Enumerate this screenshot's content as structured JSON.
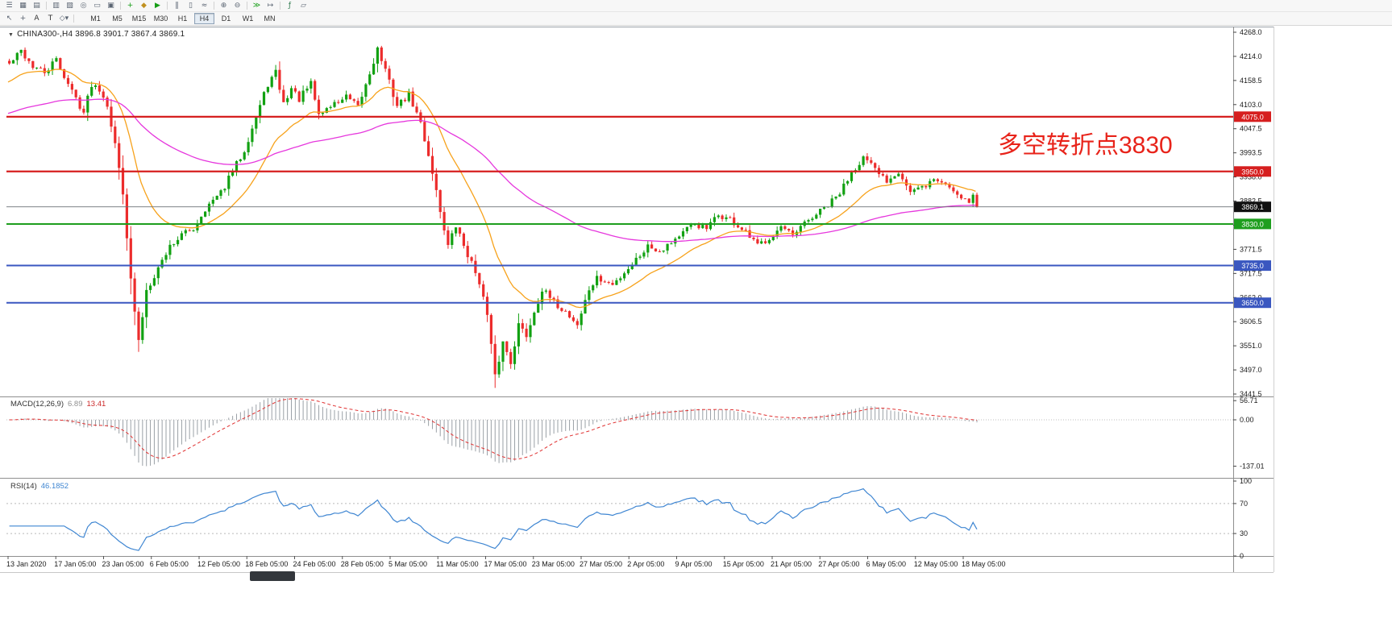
{
  "app": {
    "name": "MetaTrader chart window"
  },
  "toolbar": {
    "row1_icons": [
      {
        "name": "toolbars-menu",
        "glyph": "☰",
        "color": "#5a6472"
      },
      {
        "name": "chart-windows",
        "glyph": "▦",
        "color": "#5a6472"
      },
      {
        "name": "profiles",
        "glyph": "▤",
        "color": "#5a6472"
      },
      {
        "sep": true
      },
      {
        "name": "market-watch",
        "glyph": "▥",
        "color": "#5a6472"
      },
      {
        "name": "data-window",
        "glyph": "▧",
        "color": "#5a6472"
      },
      {
        "name": "navigator",
        "glyph": "◎",
        "color": "#5a6472"
      },
      {
        "name": "terminal",
        "glyph": "▭",
        "color": "#5a6472"
      },
      {
        "name": "strategy-tester",
        "glyph": "▣",
        "color": "#5a6472"
      },
      {
        "sep": true
      },
      {
        "name": "new-order",
        "glyph": "+",
        "color": "#159d15"
      },
      {
        "name": "metaeditor",
        "glyph": "◆",
        "color": "#c09020"
      },
      {
        "name": "autotrading",
        "glyph": "▶",
        "color": "#159d15"
      },
      {
        "sep": true
      },
      {
        "name": "bars-mode",
        "glyph": "‖",
        "color": "#5a6472"
      },
      {
        "name": "candles-mode",
        "glyph": "▯",
        "color": "#5a6472"
      },
      {
        "name": "line-mode",
        "glyph": "≈",
        "color": "#5a6472"
      },
      {
        "sep": true
      },
      {
        "name": "zoom-in",
        "glyph": "⊕",
        "color": "#5a6472"
      },
      {
        "name": "zoom-out",
        "glyph": "⊖",
        "color": "#5a6472"
      },
      {
        "sep": true
      },
      {
        "name": "auto-scroll",
        "glyph": "≫",
        "color": "#159d15"
      },
      {
        "name": "chart-shift",
        "glyph": "↦",
        "color": "#5a6472"
      },
      {
        "sep": true
      },
      {
        "name": "indicators",
        "glyph": "ƒ",
        "color": "#2f7a4f"
      },
      {
        "name": "templates",
        "glyph": "▱",
        "color": "#5a6472"
      }
    ],
    "row2_tools": [
      {
        "name": "cursor-tool",
        "glyph": "↖",
        "color": "#5a6472"
      },
      {
        "name": "crosshair-tool",
        "glyph": "+",
        "color": "#5a6472"
      },
      {
        "name": "text-annotation-tool",
        "glyph": "A",
        "color": "#333333"
      },
      {
        "name": "text-label-tool",
        "glyph": "T",
        "color": "#333333"
      },
      {
        "name": "shapes-tool",
        "glyph": "◇▾",
        "color": "#5a6472"
      }
    ],
    "timeframes": [
      "M1",
      "M5",
      "M15",
      "M30",
      "H1",
      "H4",
      "D1",
      "W1",
      "MN"
    ],
    "active_timeframe": "H4"
  },
  "chart": {
    "collapse_glyph": "▼",
    "title_text": "CHINA300-,H4 3896.8 3901.7 3867.4 3869.1",
    "colors": {
      "up": "#12a112",
      "down": "#ec2c2c",
      "background": "#ffffff"
    },
    "current_price_tag": {
      "value": 3869.1,
      "label": "3869.1",
      "box": "#111111"
    }
  },
  "indicators": {
    "macd": {
      "name": "MACD(12,26,9)",
      "value": "6.89",
      "signal": "13.41"
    },
    "rsi": {
      "name": "RSI(14)",
      "value": "46.1852"
    }
  },
  "chart_data": {
    "type": "candlestick",
    "symbol": "CHINA300-",
    "timeframe": "H4",
    "current_ohlc": {
      "open": 3896.8,
      "high": 3901.7,
      "low": 3867.4,
      "close": 3869.1
    },
    "bar_count": 248,
    "noise_seed": 42,
    "y_range": [
      3441.5,
      4268.0
    ],
    "y_ticks": [
      "4268.0",
      "4214.0",
      "4158.5",
      "4103.0",
      "4047.5",
      "3993.5",
      "3938.0",
      "3882.5",
      "3827.0",
      "3771.5",
      "3717.5",
      "3662.0",
      "3606.5",
      "3551.0",
      "3497.0",
      "3441.5"
    ],
    "x_labels": [
      "13 Jan 2020",
      "17 Jan 05:00",
      "23 Jan 05:00",
      "6 Feb 05:00",
      "12 Feb 05:00",
      "18 Feb 05:00",
      "24 Feb 05:00",
      "28 Feb 05:00",
      "5 Mar 05:00",
      "11 Mar 05:00",
      "17 Mar 05:00",
      "23 Mar 05:00",
      "27 Mar 05:00",
      "2 Apr 05:00",
      "9 Apr 05:00",
      "15 Apr 05:00",
      "21 Apr 05:00",
      "27 Apr 05:00",
      "6 May 05:00",
      "12 May 05:00",
      "18 May 05:00"
    ],
    "price_path_waypoints": [
      [
        0,
        4195
      ],
      [
        3,
        4225
      ],
      [
        6,
        4190
      ],
      [
        9,
        4175
      ],
      [
        12,
        4205
      ],
      [
        15,
        4150
      ],
      [
        19,
        4085
      ],
      [
        21,
        4150
      ],
      [
        23,
        4140
      ],
      [
        25,
        4105
      ],
      [
        27,
        4010
      ],
      [
        29,
        3905
      ],
      [
        31,
        3700
      ],
      [
        33,
        3560
      ],
      [
        35,
        3680
      ],
      [
        38,
        3730
      ],
      [
        41,
        3780
      ],
      [
        44,
        3805
      ],
      [
        47,
        3820
      ],
      [
        50,
        3865
      ],
      [
        54,
        3900
      ],
      [
        57,
        3950
      ],
      [
        60,
        4000
      ],
      [
        63,
        4075
      ],
      [
        66,
        4150
      ],
      [
        68,
        4175
      ],
      [
        70,
        4105
      ],
      [
        72,
        4140
      ],
      [
        74,
        4115
      ],
      [
        77,
        4150
      ],
      [
        79,
        4080
      ],
      [
        82,
        4100
      ],
      [
        86,
        4120
      ],
      [
        89,
        4095
      ],
      [
        92,
        4175
      ],
      [
        94,
        4230
      ],
      [
        96,
        4180
      ],
      [
        99,
        4100
      ],
      [
        102,
        4125
      ],
      [
        105,
        4060
      ],
      [
        108,
        3950
      ],
      [
        110,
        3860
      ],
      [
        112,
        3780
      ],
      [
        114,
        3825
      ],
      [
        117,
        3760
      ],
      [
        120,
        3700
      ],
      [
        122,
        3620
      ],
      [
        124,
        3480
      ],
      [
        126,
        3560
      ],
      [
        128,
        3515
      ],
      [
        130,
        3600
      ],
      [
        132,
        3575
      ],
      [
        134,
        3630
      ],
      [
        136,
        3680
      ],
      [
        139,
        3650
      ],
      [
        142,
        3630
      ],
      [
        145,
        3600
      ],
      [
        148,
        3680
      ],
      [
        150,
        3705
      ],
      [
        154,
        3690
      ],
      [
        157,
        3720
      ],
      [
        160,
        3750
      ],
      [
        163,
        3780
      ],
      [
        166,
        3770
      ],
      [
        169,
        3790
      ],
      [
        172,
        3810
      ],
      [
        175,
        3830
      ],
      [
        178,
        3818
      ],
      [
        181,
        3850
      ],
      [
        184,
        3840
      ],
      [
        188,
        3808
      ],
      [
        191,
        3780
      ],
      [
        194,
        3800
      ],
      [
        197,
        3822
      ],
      [
        200,
        3800
      ],
      [
        203,
        3830
      ],
      [
        206,
        3852
      ],
      [
        209,
        3872
      ],
      [
        212,
        3900
      ],
      [
        215,
        3950
      ],
      [
        218,
        3982
      ],
      [
        221,
        3952
      ],
      [
        224,
        3930
      ],
      [
        227,
        3952
      ],
      [
        230,
        3902
      ],
      [
        233,
        3912
      ],
      [
        236,
        3932
      ],
      [
        239,
        3922
      ],
      [
        242,
        3900
      ],
      [
        245,
        3882
      ],
      [
        247,
        3869.1
      ]
    ],
    "moving_averages": [
      {
        "name": "ma-fast-orange",
        "color": "#f7a21b",
        "period": 21,
        "seed": 4150
      },
      {
        "name": "ma-slow-magenta",
        "color": "#e637dd",
        "period": 90,
        "seed": 4080
      }
    ],
    "levels": [
      {
        "value": 4075.0,
        "label": "4075.0",
        "color": "#d61f1f",
        "width": 2.2
      },
      {
        "value": 3950.0,
        "label": "3950.0",
        "color": "#d61f1f",
        "width": 2.2
      },
      {
        "value": 3830.0,
        "label": "3830.0",
        "color": "#1e9e1e",
        "width": 2
      },
      {
        "value": 3735.0,
        "label": "3735.0",
        "color": "#3a57c0",
        "width": 2
      },
      {
        "value": 3650.0,
        "label": "3650.0",
        "color": "#3a57c0",
        "width": 2
      }
    ],
    "annotation": {
      "text": "多空转折点3830",
      "color": "#e8231a"
    },
    "macd_panel": {
      "axis": [
        [
          56.71,
          "56.71"
        ],
        [
          0,
          "0.00"
        ],
        [
          -137.01,
          "-137.01"
        ]
      ],
      "min_displayed": -137.01,
      "histogram_color": "#9aa0a6",
      "signal_color": "#e03131"
    },
    "rsi_panel": {
      "axis": [
        [
          100,
          "100"
        ],
        [
          70,
          "70"
        ],
        [
          30,
          "30"
        ],
        [
          0,
          "0"
        ]
      ],
      "levels": [
        70,
        30
      ],
      "line_color": "#3f86d2"
    }
  }
}
